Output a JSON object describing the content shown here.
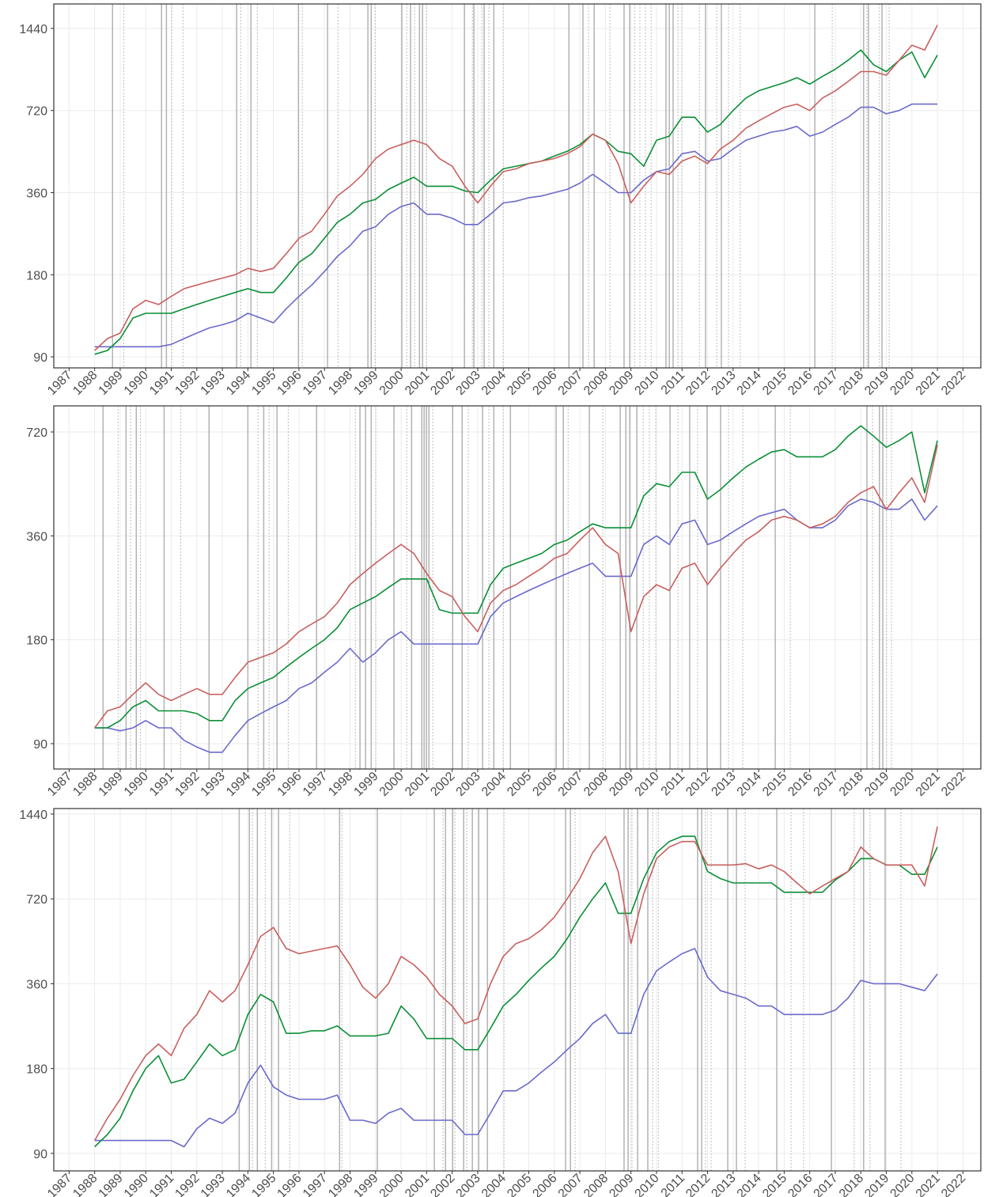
{
  "chart_data": [
    {
      "type": "line",
      "log_y": true,
      "grid": true,
      "x": [
        1988,
        1988.5,
        1989,
        1989.5,
        1990,
        1990.5,
        1991,
        1991.5,
        1992,
        1992.5,
        1993,
        1993.5,
        1994,
        1994.5,
        1995,
        1995.5,
        1996,
        1996.5,
        1997,
        1997.5,
        1998,
        1998.5,
        1999,
        1999.5,
        2000,
        2000.5,
        2001,
        2001.5,
        2002,
        2002.5,
        2003,
        2003.5,
        2004,
        2004.5,
        2005,
        2005.5,
        2006,
        2006.5,
        2007,
        2007.5,
        2008,
        2008.5,
        2009,
        2009.5,
        2010,
        2010.5,
        2011,
        2011.5,
        2012,
        2012.5,
        2013,
        2013.5,
        2014,
        2014.5,
        2015,
        2015.5,
        2016,
        2016.5,
        2017,
        2017.5,
        2018,
        2018.5,
        2019,
        2019.5,
        2020,
        2020.5,
        2021
      ],
      "series": [
        {
          "color": "#6a6acc",
          "values": [
            98,
            98,
            98,
            98,
            98,
            98,
            100,
            105,
            110,
            115,
            118,
            122,
            130,
            125,
            120,
            135,
            150,
            165,
            185,
            210,
            230,
            260,
            270,
            300,
            320,
            330,
            300,
            300,
            290,
            275,
            275,
            300,
            330,
            335,
            345,
            350,
            360,
            370,
            390,
            420,
            390,
            360,
            360,
            400,
            430,
            440,
            500,
            510,
            470,
            480,
            520,
            560,
            580,
            600,
            610,
            630,
            580,
            600,
            640,
            680,
            740,
            740,
            700,
            720,
            760,
            760,
            760
          ]
        },
        {
          "color": "#0a8f36",
          "values": [
            92,
            95,
            105,
            125,
            130,
            130,
            130,
            135,
            140,
            145,
            150,
            155,
            160,
            155,
            155,
            175,
            200,
            215,
            245,
            280,
            300,
            330,
            340,
            370,
            390,
            410,
            380,
            380,
            380,
            365,
            360,
            400,
            440,
            450,
            460,
            470,
            490,
            510,
            540,
            590,
            560,
            510,
            500,
            450,
            560,
            580,
            680,
            680,
            600,
            640,
            720,
            800,
            850,
            880,
            910,
            950,
            900,
            960,
            1020,
            1100,
            1200,
            1060,
            1000,
            1100,
            1180,
            950,
            1150
          ]
        },
        {
          "color": "#c8605f",
          "values": [
            95,
            105,
            110,
            135,
            145,
            140,
            150,
            160,
            165,
            170,
            175,
            180,
            190,
            185,
            190,
            215,
            245,
            260,
            300,
            350,
            380,
            420,
            480,
            520,
            540,
            560,
            540,
            480,
            450,
            380,
            330,
            380,
            430,
            440,
            460,
            470,
            480,
            500,
            530,
            590,
            560,
            460,
            330,
            380,
            430,
            420,
            470,
            490,
            460,
            520,
            560,
            620,
            660,
            700,
            740,
            760,
            720,
            800,
            850,
            920,
            1000,
            1000,
            970,
            1100,
            1250,
            1200,
            1480
          ]
        }
      ],
      "vlines_solid": [
        1988.7,
        1990.62,
        1990.81,
        1993.56,
        1994.12,
        1995.98,
        1997.12,
        1998.7,
        1998.83,
        2000.03,
        2000.37,
        2000.72,
        2000.84,
        2002.48,
        2002.85,
        2003.25,
        2003.63,
        2006.57,
        2007.12,
        2007.56,
        2008.73,
        2008.95,
        2010.37,
        2010.5,
        2010.65,
        2011.92,
        2012.54,
        2016.2,
        2018.11,
        2018.3,
        2018.83
      ],
      "vlines_dotted": [
        1989.14,
        1991.02,
        1991.46,
        1993.72,
        1994.37,
        1996.13,
        1997.53,
        1998.98,
        2000.22,
        2000.53,
        2000.99,
        2002.79,
        2003.16,
        2003.44,
        2004.0,
        2007.34,
        2008.18,
        2009.14,
        2009.35,
        2009.57,
        2009.79,
        2010.84,
        2010.99,
        2011.68,
        2012.36,
        2012.82,
        2013.28,
        2016.88,
        2018.24,
        2018.73,
        2019.11
      ],
      "xlim": [
        1986.4,
        2022.7
      ],
      "xticks": [
        1987,
        1988,
        1989,
        1990,
        1991,
        1992,
        1993,
        1994,
        1995,
        1996,
        1997,
        1998,
        1999,
        2000,
        2001,
        2002,
        2003,
        2004,
        2005,
        2006,
        2007,
        2008,
        2009,
        2010,
        2011,
        2012,
        2013,
        2014,
        2015,
        2016,
        2017,
        2018,
        2019,
        2020,
        2021,
        2022
      ],
      "ylim": [
        82,
        1770
      ],
      "yticks": [
        90,
        180,
        360,
        720,
        1440
      ]
    },
    {
      "type": "line",
      "log_y": true,
      "grid": true,
      "x": [
        1988,
        1988.5,
        1989,
        1989.5,
        1990,
        1990.5,
        1991,
        1991.5,
        1992,
        1992.5,
        1993,
        1993.5,
        1994,
        1994.5,
        1995,
        1995.5,
        1996,
        1996.5,
        1997,
        1997.5,
        1998,
        1998.5,
        1999,
        1999.5,
        2000,
        2000.5,
        2001,
        2001.5,
        2002,
        2002.5,
        2003,
        2003.5,
        2004,
        2004.5,
        2005,
        2005.5,
        2006,
        2006.5,
        2007,
        2007.5,
        2008,
        2008.5,
        2009,
        2009.5,
        2010,
        2010.5,
        2011,
        2011.5,
        2012,
        2012.5,
        2013,
        2013.5,
        2014,
        2014.5,
        2015,
        2015.5,
        2016,
        2016.5,
        2017,
        2017.5,
        2018,
        2018.5,
        2019,
        2019.5,
        2020,
        2020.5,
        2021
      ],
      "series": [
        {
          "color": "#6a6acc",
          "values": [
            100,
            100,
            98,
            100,
            105,
            100,
            100,
            92,
            88,
            85,
            85,
            95,
            105,
            110,
            115,
            120,
            130,
            135,
            145,
            155,
            170,
            155,
            165,
            180,
            190,
            175,
            175,
            175,
            175,
            175,
            175,
            210,
            230,
            240,
            250,
            260,
            270,
            280,
            290,
            300,
            275,
            275,
            275,
            340,
            360,
            340,
            390,
            400,
            340,
            350,
            370,
            390,
            410,
            420,
            430,
            400,
            380,
            380,
            400,
            440,
            460,
            450,
            430,
            430,
            460,
            400,
            440
          ]
        },
        {
          "color": "#0a8f36",
          "values": [
            100,
            100,
            105,
            115,
            120,
            112,
            112,
            112,
            110,
            105,
            105,
            120,
            130,
            135,
            140,
            150,
            160,
            170,
            180,
            195,
            220,
            230,
            240,
            255,
            270,
            270,
            270,
            220,
            215,
            215,
            215,
            260,
            290,
            300,
            310,
            320,
            340,
            350,
            370,
            390,
            380,
            380,
            380,
            470,
            510,
            500,
            550,
            550,
            460,
            490,
            530,
            570,
            600,
            630,
            640,
            610,
            610,
            610,
            640,
            700,
            750,
            700,
            650,
            680,
            720,
            480,
            680
          ]
        },
        {
          "color": "#c8605f",
          "values": [
            100,
            112,
            115,
            125,
            135,
            125,
            120,
            125,
            130,
            125,
            125,
            140,
            155,
            160,
            165,
            175,
            190,
            200,
            210,
            230,
            260,
            280,
            300,
            320,
            340,
            320,
            280,
            250,
            240,
            210,
            190,
            230,
            250,
            260,
            275,
            290,
            310,
            320,
            350,
            380,
            340,
            320,
            190,
            240,
            260,
            250,
            290,
            300,
            260,
            290,
            320,
            350,
            370,
            400,
            410,
            400,
            380,
            390,
            410,
            450,
            480,
            500,
            430,
            480,
            530,
            450,
            660
          ]
        }
      ],
      "vlines_solid": [
        1988.33,
        1989.23,
        1989.63,
        1990.72,
        1992.48,
        1994.0,
        1994.62,
        1995.14,
        1996.69,
        1998.39,
        1998.61,
        1998.83,
        1999.72,
        2000.41,
        2000.81,
        2000.9,
        2000.99,
        2001.09,
        2002.02,
        2002.39,
        2003.19,
        2003.63,
        2004.28,
        2006.07,
        2006.35,
        2007.37,
        2008.58,
        2008.8,
        2008.95,
        2009.23,
        2010.53,
        2011.3,
        2011.98,
        2012.51,
        2014.65,
        2018.24,
        2018.73,
        2018.86
      ],
      "vlines_dotted": [
        1988.92,
        1989.41,
        1989.79,
        1991.37,
        1994.4,
        1994.83,
        1995.58,
        1998.21,
        1999.01,
        2000.22,
        2001.24,
        2002.63,
        2003.44,
        2004.0,
        2006.54,
        2007.9,
        2009.48,
        2009.72,
        2009.97,
        2010.84,
        2011.61,
        2012.82,
        2013.38,
        2015.24,
        2018.46,
        2019.01,
        2019.2
      ],
      "xlim": [
        1986.4,
        2022.7
      ],
      "xticks": [
        1987,
        1988,
        1989,
        1990,
        1991,
        1992,
        1993,
        1994,
        1995,
        1996,
        1997,
        1998,
        1999,
        2000,
        2001,
        2002,
        2003,
        2004,
        2005,
        2006,
        2007,
        2008,
        2009,
        2010,
        2011,
        2012,
        2013,
        2014,
        2015,
        2016,
        2017,
        2018,
        2019,
        2020,
        2021,
        2022
      ],
      "ylim": [
        76,
        857
      ],
      "yticks": [
        90,
        180,
        360,
        720
      ]
    },
    {
      "type": "line",
      "log_y": true,
      "grid": true,
      "x": [
        1988,
        1988.5,
        1989,
        1989.5,
        1990,
        1990.5,
        1991,
        1991.5,
        1992,
        1992.5,
        1993,
        1993.5,
        1994,
        1994.5,
        1995,
        1995.5,
        1996,
        1996.5,
        1997,
        1997.5,
        1998,
        1998.5,
        1999,
        1999.5,
        2000,
        2000.5,
        2001,
        2001.5,
        2002,
        2002.5,
        2003,
        2003.5,
        2004,
        2004.5,
        2005,
        2005.5,
        2006,
        2006.5,
        2007,
        2007.5,
        2008,
        2008.5,
        2009,
        2009.5,
        2010,
        2010.5,
        2011,
        2011.5,
        2012,
        2012.5,
        2013,
        2013.5,
        2014,
        2014.5,
        2015,
        2015.5,
        2016,
        2016.5,
        2017,
        2017.5,
        2018,
        2018.5,
        2019,
        2019.5,
        2020,
        2020.5,
        2021
      ],
      "series": [
        {
          "color": "#6a6acc",
          "values": [
            100,
            100,
            100,
            100,
            100,
            100,
            100,
            95,
            110,
            120,
            115,
            125,
            160,
            185,
            155,
            145,
            140,
            140,
            140,
            145,
            118,
            118,
            115,
            125,
            130,
            118,
            118,
            118,
            118,
            105,
            105,
            125,
            150,
            150,
            160,
            175,
            190,
            210,
            230,
            260,
            280,
            240,
            240,
            330,
            400,
            430,
            460,
            480,
            380,
            340,
            330,
            320,
            300,
            300,
            280,
            280,
            280,
            280,
            290,
            320,
            370,
            360,
            360,
            360,
            350,
            340,
            390
          ]
        },
        {
          "color": "#0a8f36",
          "values": [
            95,
            105,
            120,
            150,
            180,
            200,
            160,
            165,
            190,
            220,
            200,
            210,
            280,
            330,
            310,
            240,
            240,
            245,
            245,
            255,
            235,
            235,
            235,
            240,
            300,
            270,
            230,
            230,
            230,
            210,
            210,
            250,
            300,
            330,
            370,
            410,
            450,
            520,
            620,
            720,
            820,
            640,
            640,
            850,
            1050,
            1150,
            1200,
            1200,
            900,
            850,
            820,
            820,
            820,
            820,
            760,
            760,
            760,
            760,
            840,
            900,
            1000,
            1000,
            950,
            950,
            880,
            880,
            1100
          ]
        },
        {
          "color": "#c8605f",
          "values": [
            100,
            120,
            140,
            170,
            200,
            220,
            200,
            250,
            280,
            340,
            310,
            340,
            420,
            530,
            570,
            480,
            460,
            470,
            480,
            490,
            420,
            350,
            320,
            360,
            450,
            420,
            380,
            330,
            300,
            260,
            270,
            360,
            450,
            500,
            520,
            560,
            620,
            720,
            850,
            1050,
            1200,
            900,
            500,
            750,
            1000,
            1100,
            1150,
            1150,
            950,
            950,
            950,
            960,
            920,
            950,
            900,
            820,
            750,
            800,
            850,
            900,
            1100,
            1000,
            950,
            950,
            950,
            800,
            1300
          ]
        }
      ],
      "vlines_solid": [
        1993.66,
        1994.06,
        1994.37,
        1994.93,
        1995.2,
        1997.59,
        1999.07,
        2001.3,
        2001.74,
        2002.02,
        2002.45,
        2002.79,
        2003.04,
        2003.38,
        2006.44,
        2006.63,
        2008.73,
        2008.89,
        2009.26,
        2009.66,
        2011.61,
        2011.77,
        2012.79,
        2013.13,
        2014.71,
        2016.85,
        2018.11,
        2018.95
      ],
      "vlines_dotted": [
        1994.18,
        1994.68,
        1995.64,
        1997.68,
        2001.64,
        2002.11,
        2002.57,
        2004.03,
        2006.81,
        2009.04,
        2009.85,
        2010.07,
        2011.92,
        2012.14,
        2013.47,
        2015.27,
        2015.76,
        2017.74,
        2018.36,
        2019.57
      ],
      "xlim": [
        1986.4,
        2022.7
      ],
      "xticks": [
        1987,
        1988,
        1989,
        1990,
        1991,
        1992,
        1993,
        1994,
        1995,
        1996,
        1997,
        1998,
        1999,
        2000,
        2001,
        2002,
        2003,
        2004,
        2005,
        2006,
        2007,
        2008,
        2009,
        2010,
        2011,
        2012,
        2013,
        2014,
        2015,
        2016,
        2017,
        2018,
        2019,
        2020,
        2021,
        2022
      ],
      "ylim": [
        78,
        1506
      ],
      "yticks": [
        90,
        180,
        360,
        720,
        1440
      ]
    }
  ]
}
